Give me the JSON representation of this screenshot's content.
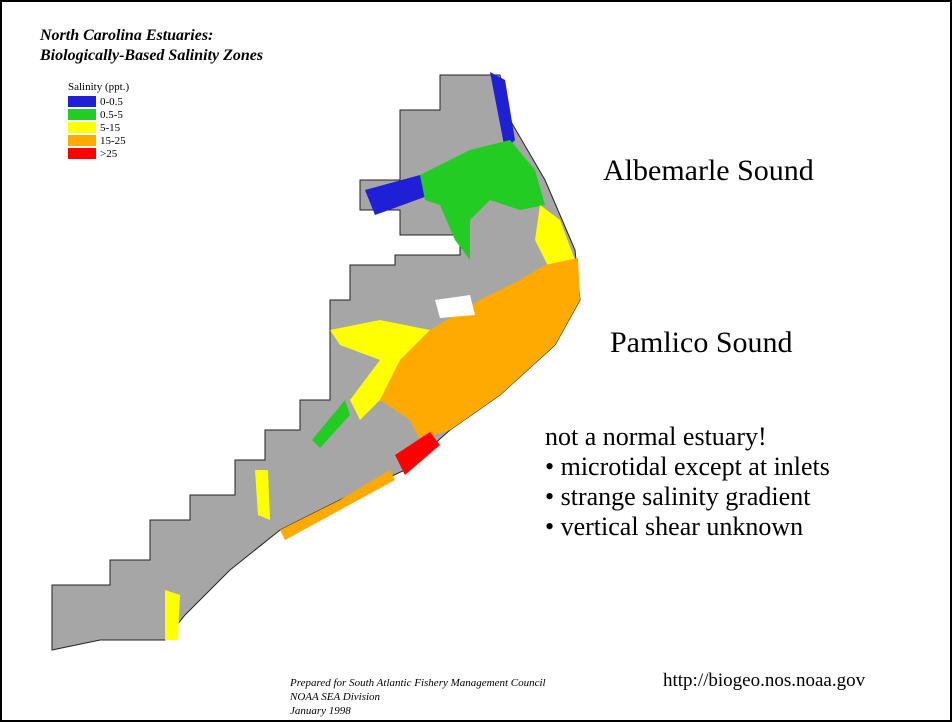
{
  "header": {
    "title_lines": [
      "North Carolina Estuaries:",
      "Biologically-Based Salinity Zones"
    ]
  },
  "legend": {
    "title": "Salinity (ppt.)",
    "items": [
      {
        "label": "0-0.5",
        "color": "#1f1fd6"
      },
      {
        "label": "0.5-5",
        "color": "#22cc22"
      },
      {
        "label": "5-15",
        "color": "#ffff00"
      },
      {
        "label": "15-25",
        "color": "#ffaa00"
      },
      {
        "label": ">25",
        "color": "#ff0000"
      }
    ]
  },
  "map_labels": [
    "Albemarle Sound",
    "Pamlico Sound"
  ],
  "notes": {
    "heading": "not a normal estuary!",
    "bullets": [
      "• microtidal except at inlets",
      "• strange salinity gradient",
      "• vertical shear unknown"
    ]
  },
  "credit": [
    "Prepared for South Atlantic Fishery Management Council",
    "NOAA SEA Division",
    "January 1998"
  ],
  "url": "http://biogeo.nos.noaa.gov"
}
